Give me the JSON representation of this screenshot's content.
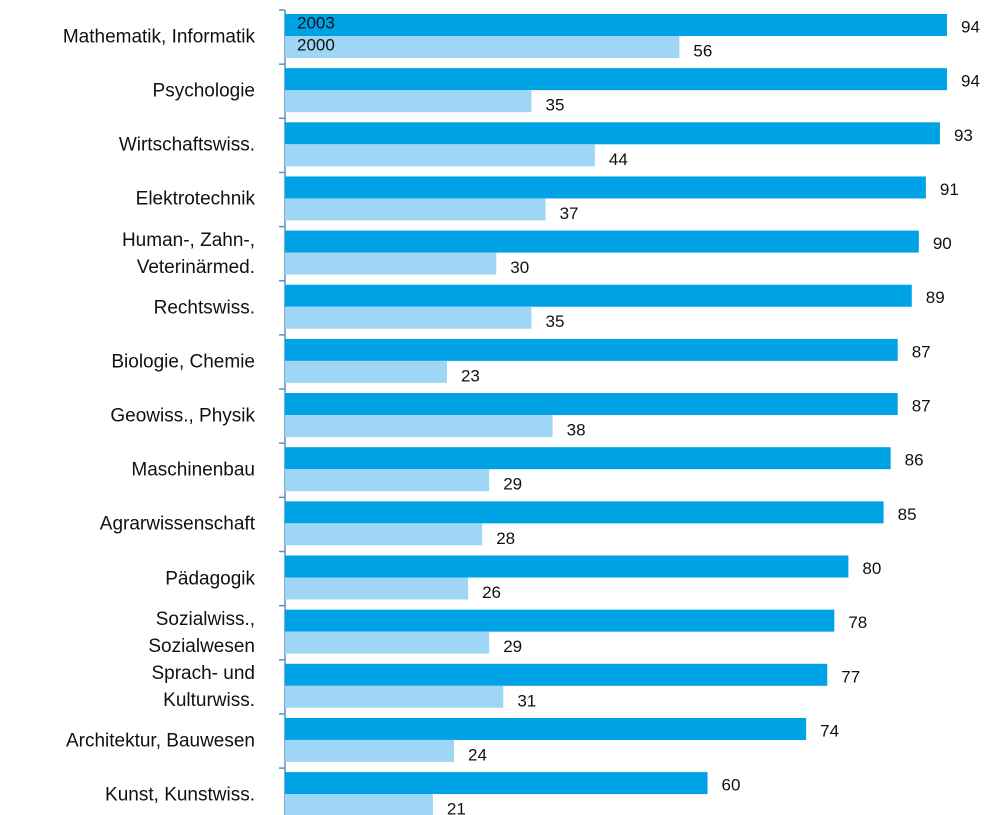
{
  "chart_data": {
    "type": "bar",
    "orientation": "horizontal",
    "categories": [
      "Mathematik, Informatik",
      "Psychologie",
      "Wirtschaftswiss.",
      "Elektrotechnik",
      "Human-, Zahn-,\nVeterinärmed.",
      "Rechtswiss.",
      "Biologie, Chemie",
      "Geowiss., Physik",
      "Maschinenbau",
      "Agrarwissenschaft",
      "Pädagogik",
      "Sozialwiss.,\nSozialwesen",
      "Sprach- und\nKulturwiss.",
      "Architektur, Bauwesen",
      "Kunst, Kunstwiss."
    ],
    "series": [
      {
        "name": "2003",
        "color": "#00a2e6",
        "values": [
          94,
          94,
          93,
          91,
          90,
          89,
          87,
          87,
          86,
          85,
          80,
          78,
          77,
          74,
          60
        ]
      },
      {
        "name": "2000",
        "color": "#9fd6f6",
        "values": [
          56,
          35,
          44,
          37,
          30,
          35,
          23,
          38,
          29,
          28,
          26,
          29,
          31,
          24,
          21
        ]
      }
    ]
  }
}
